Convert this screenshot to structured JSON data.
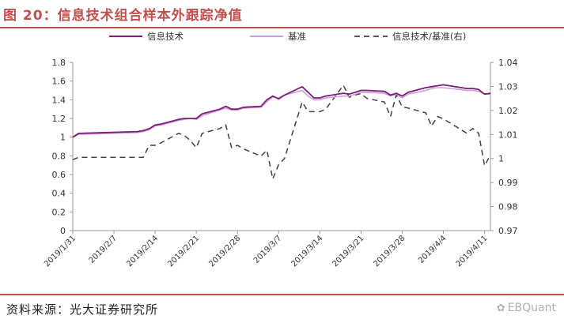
{
  "figure": {
    "title": "图 20：信息技术组合样本外跟踪净值"
  },
  "source": {
    "text": "资料来源：光大证券研究所",
    "watermark": "EBQuant"
  },
  "colors": {
    "portfolio": "#7b1f74",
    "benchmark": "#cf9ddc",
    "ratio": "#404040",
    "axis": "#9a9a9a",
    "accent": "#c0504d"
  },
  "chart_data": {
    "type": "line",
    "title": "",
    "legend_position": "top",
    "grid": false,
    "x_tick_labels": [
      "2019/1/31",
      "2019/2/7",
      "2019/2/14",
      "2019/2/21",
      "2019/2/28",
      "2019/3/7",
      "2019/3/14",
      "2019/3/21",
      "2019/3/28",
      "2019/4/4",
      "2019/4/11"
    ],
    "y_left": {
      "range": [
        0,
        1.8
      ],
      "ticks": [
        "0",
        "0.2",
        "0.4",
        "0.6",
        "0.8",
        "1",
        "1.2",
        "1.4",
        "1.6",
        "1.8"
      ]
    },
    "y_right": {
      "range": [
        0.97,
        1.04
      ],
      "ticks": [
        "0.97",
        "0.98",
        "0.99",
        "1",
        "1.01",
        "1.02",
        "1.03",
        "1.04"
      ]
    },
    "series": [
      {
        "name": "信息技术",
        "axis": "left",
        "style": "solid",
        "points": [
          [
            "2019/1/31",
            1.0
          ],
          [
            "2019/2/1",
            1.04
          ],
          [
            "2019/2/6",
            1.05
          ],
          [
            "2019/2/11",
            1.06
          ],
          [
            "2019/2/12",
            1.07
          ],
          [
            "2019/2/13",
            1.09
          ],
          [
            "2019/2/14",
            1.13
          ],
          [
            "2019/2/15",
            1.14
          ],
          [
            "2019/2/18",
            1.19
          ],
          [
            "2019/2/19",
            1.2
          ],
          [
            "2019/2/20",
            1.2
          ],
          [
            "2019/2/21",
            1.2
          ],
          [
            "2019/2/22",
            1.25
          ],
          [
            "2019/2/25",
            1.3
          ],
          [
            "2019/2/26",
            1.33
          ],
          [
            "2019/2/27",
            1.3
          ],
          [
            "2019/2/28",
            1.3
          ],
          [
            "2019/3/1",
            1.32
          ],
          [
            "2019/3/4",
            1.33
          ],
          [
            "2019/3/5",
            1.4
          ],
          [
            "2019/3/6",
            1.44
          ],
          [
            "2019/3/7",
            1.41
          ],
          [
            "2019/3/8",
            1.45
          ],
          [
            "2019/3/11",
            1.54
          ],
          [
            "2019/3/12",
            1.48
          ],
          [
            "2019/3/13",
            1.42
          ],
          [
            "2019/3/14",
            1.42
          ],
          [
            "2019/3/15",
            1.44
          ],
          [
            "2019/3/18",
            1.47
          ],
          [
            "2019/3/19",
            1.46
          ],
          [
            "2019/3/20",
            1.48
          ],
          [
            "2019/3/21",
            1.5
          ],
          [
            "2019/3/22",
            1.5
          ],
          [
            "2019/3/25",
            1.49
          ],
          [
            "2019/3/26",
            1.45
          ],
          [
            "2019/3/27",
            1.47
          ],
          [
            "2019/3/28",
            1.44
          ],
          [
            "2019/3/29",
            1.48
          ],
          [
            "2019/4/1",
            1.53
          ],
          [
            "2019/4/2",
            1.54
          ],
          [
            "2019/4/3",
            1.55
          ],
          [
            "2019/4/4",
            1.56
          ],
          [
            "2019/4/8",
            1.52
          ],
          [
            "2019/4/9",
            1.52
          ],
          [
            "2019/4/10",
            1.51
          ],
          [
            "2019/4/11",
            1.46
          ],
          [
            "2019/4/12",
            1.47
          ]
        ]
      },
      {
        "name": "基准",
        "axis": "left",
        "style": "solid",
        "points": [
          [
            "2019/1/31",
            1.0
          ],
          [
            "2019/2/1",
            1.03
          ],
          [
            "2019/2/6",
            1.04
          ],
          [
            "2019/2/11",
            1.05
          ],
          [
            "2019/2/12",
            1.06
          ],
          [
            "2019/2/13",
            1.08
          ],
          [
            "2019/2/14",
            1.12
          ],
          [
            "2019/2/15",
            1.13
          ],
          [
            "2019/2/18",
            1.18
          ],
          [
            "2019/2/19",
            1.19
          ],
          [
            "2019/2/20",
            1.2
          ],
          [
            "2019/2/21",
            1.19
          ],
          [
            "2019/2/22",
            1.23
          ],
          [
            "2019/2/25",
            1.29
          ],
          [
            "2019/2/26",
            1.31
          ],
          [
            "2019/2/27",
            1.29
          ],
          [
            "2019/2/28",
            1.29
          ],
          [
            "2019/3/1",
            1.31
          ],
          [
            "2019/3/4",
            1.32
          ],
          [
            "2019/3/5",
            1.38
          ],
          [
            "2019/3/6",
            1.43
          ],
          [
            "2019/3/7",
            1.42
          ],
          [
            "2019/3/8",
            1.45
          ],
          [
            "2019/3/11",
            1.5
          ],
          [
            "2019/3/12",
            1.44
          ],
          [
            "2019/3/13",
            1.4
          ],
          [
            "2019/3/14",
            1.4
          ],
          [
            "2019/3/15",
            1.42
          ],
          [
            "2019/3/18",
            1.44
          ],
          [
            "2019/3/19",
            1.44
          ],
          [
            "2019/3/20",
            1.46
          ],
          [
            "2019/3/21",
            1.48
          ],
          [
            "2019/3/22",
            1.48
          ],
          [
            "2019/3/25",
            1.47
          ],
          [
            "2019/3/26",
            1.44
          ],
          [
            "2019/3/27",
            1.46
          ],
          [
            "2019/3/28",
            1.42
          ],
          [
            "2019/3/29",
            1.46
          ],
          [
            "2019/4/1",
            1.5
          ],
          [
            "2019/4/2",
            1.52
          ],
          [
            "2019/4/3",
            1.53
          ],
          [
            "2019/4/4",
            1.53
          ],
          [
            "2019/4/8",
            1.5
          ],
          [
            "2019/4/9",
            1.5
          ],
          [
            "2019/4/10",
            1.49
          ],
          [
            "2019/4/11",
            1.46
          ],
          [
            "2019/4/12",
            1.46
          ]
        ]
      },
      {
        "name": "信息技术/基准(右)",
        "axis": "right",
        "style": "dashed",
        "points": [
          [
            "2019/1/31",
            0.9995
          ],
          [
            "2019/2/1",
            1.0005
          ],
          [
            "2019/2/6",
            1.0005
          ],
          [
            "2019/2/11",
            1.0005
          ],
          [
            "2019/2/12",
            1.0005
          ],
          [
            "2019/2/13",
            1.0055
          ],
          [
            "2019/2/14",
            1.0055
          ],
          [
            "2019/2/15",
            1.0065
          ],
          [
            "2019/2/18",
            1.0105
          ],
          [
            "2019/2/19",
            1.0095
          ],
          [
            "2019/2/20",
            1.0075
          ],
          [
            "2019/2/21",
            1.0045
          ],
          [
            "2019/2/22",
            1.0105
          ],
          [
            "2019/2/25",
            1.0125
          ],
          [
            "2019/2/26",
            1.014
          ],
          [
            "2019/2/27",
            1.0045
          ],
          [
            "2019/2/28",
            1.0055
          ],
          [
            "2019/3/1",
            1.004
          ],
          [
            "2019/3/4",
            1.001
          ],
          [
            "2019/3/5",
            1.0035
          ],
          [
            "2019/3/6",
            0.9915
          ],
          [
            "2019/3/7",
            0.9975
          ],
          [
            "2019/3/8",
            1.0
          ],
          [
            "2019/3/11",
            1.0235
          ],
          [
            "2019/3/12",
            1.0195
          ],
          [
            "2019/3/13",
            1.0195
          ],
          [
            "2019/3/14",
            1.0195
          ],
          [
            "2019/3/15",
            1.0205
          ],
          [
            "2019/3/18",
            1.0305
          ],
          [
            "2019/3/19",
            1.0255
          ],
          [
            "2019/3/20",
            1.0265
          ],
          [
            "2019/3/21",
            1.027
          ],
          [
            "2019/3/22",
            1.025
          ],
          [
            "2019/3/25",
            1.0235
          ],
          [
            "2019/3/26",
            1.0175
          ],
          [
            "2019/3/27",
            1.0265
          ],
          [
            "2019/3/28",
            1.0215
          ],
          [
            "2019/3/29",
            1.021
          ],
          [
            "2019/4/1",
            1.019
          ],
          [
            "2019/4/2",
            1.0135
          ],
          [
            "2019/4/3",
            1.0175
          ],
          [
            "2019/4/4",
            1.0165
          ],
          [
            "2019/4/8",
            1.0105
          ],
          [
            "2019/4/9",
            1.0125
          ],
          [
            "2019/4/10",
            1.0105
          ],
          [
            "2019/4/11",
            0.997
          ],
          [
            "2019/4/12",
            1.0015
          ]
        ]
      }
    ]
  }
}
